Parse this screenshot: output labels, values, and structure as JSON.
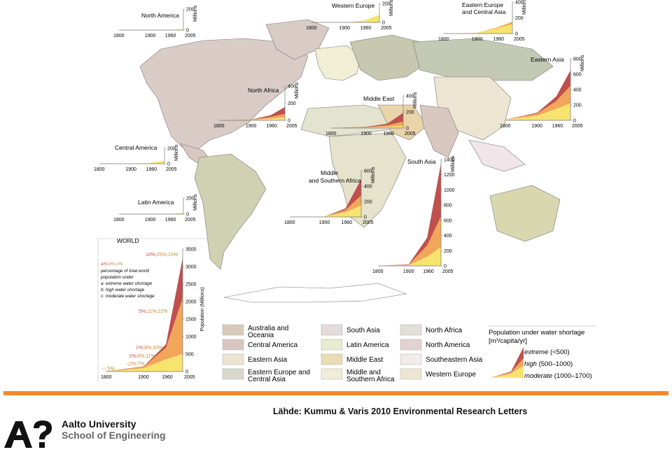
{
  "colors": {
    "extreme": "#c0504d",
    "high": "#f2a65a",
    "moderate": "#f7e46e",
    "accent": "#f4862b",
    "ocean": "#ffffff"
  },
  "chart_data": [
    {
      "type": "area",
      "title": "North America",
      "x": [
        1800,
        1900,
        1960,
        2005
      ],
      "series": [
        {
          "name": "moderate",
          "values": [
            0,
            0,
            0,
            10
          ]
        }
      ],
      "yticks": [
        0,
        200
      ],
      "ylabel": "Millions",
      "ylim": [
        0,
        200
      ]
    },
    {
      "type": "area",
      "title": "Western Europe",
      "x": [
        1800,
        1900,
        1960,
        2005
      ],
      "series": [
        {
          "name": "moderate",
          "values": [
            0,
            0,
            20,
            80
          ]
        }
      ],
      "yticks": [
        0,
        200
      ],
      "ylabel": "Millions",
      "ylim": [
        0,
        200
      ]
    },
    {
      "type": "area",
      "title": "Eastern Europe and Central Asia",
      "x": [
        1800,
        1900,
        1960,
        2005
      ],
      "series": [
        {
          "name": "moderate",
          "values": [
            0,
            10,
            70,
            120
          ]
        },
        {
          "name": "high",
          "values": [
            0,
            0,
            10,
            30
          ]
        }
      ],
      "yticks": [
        0,
        200,
        400
      ],
      "ylabel": "Millions",
      "ylim": [
        0,
        400
      ]
    },
    {
      "type": "area",
      "title": "Eastern Asia",
      "x": [
        1800,
        1900,
        1960,
        2005
      ],
      "series": [
        {
          "name": "moderate",
          "values": [
            10,
            60,
            150,
            220
          ]
        },
        {
          "name": "high",
          "values": [
            0,
            30,
            100,
            230
          ]
        },
        {
          "name": "extreme",
          "values": [
            0,
            10,
            60,
            200
          ]
        }
      ],
      "yticks": [
        0,
        200,
        400,
        600,
        800
      ],
      "ylabel": "Millions",
      "ylim": [
        0,
        800
      ]
    },
    {
      "type": "area",
      "title": "North Africa",
      "x": [
        1800,
        1900,
        1960,
        2005
      ],
      "series": [
        {
          "name": "moderate",
          "values": [
            0,
            5,
            20,
            35
          ]
        },
        {
          "name": "high",
          "values": [
            0,
            5,
            20,
            40
          ]
        },
        {
          "name": "extreme",
          "values": [
            0,
            0,
            20,
            80
          ]
        }
      ],
      "yticks": [
        0,
        200,
        400
      ],
      "ylabel": "Millions",
      "ylim": [
        0,
        400
      ]
    },
    {
      "type": "area",
      "title": "Middle East",
      "x": [
        1800,
        1900,
        1960,
        2005
      ],
      "series": [
        {
          "name": "moderate",
          "values": [
            0,
            5,
            15,
            30
          ]
        },
        {
          "name": "high",
          "values": [
            0,
            5,
            20,
            50
          ]
        },
        {
          "name": "extreme",
          "values": [
            0,
            5,
            20,
            110
          ]
        }
      ],
      "yticks": [
        0,
        200,
        400
      ],
      "ylabel": "Millions",
      "ylim": [
        0,
        400
      ]
    },
    {
      "type": "area",
      "title": "Central America",
      "x": [
        1800,
        1900,
        1960,
        2005
      ],
      "series": [
        {
          "name": "moderate",
          "values": [
            0,
            0,
            10,
            40
          ]
        }
      ],
      "yticks": [
        0,
        200
      ],
      "ylabel": "Millions",
      "ylim": [
        0,
        200
      ]
    },
    {
      "type": "area",
      "title": "Latin America",
      "x": [
        1800,
        1900,
        1960,
        2005
      ],
      "series": [
        {
          "name": "moderate",
          "values": [
            0,
            0,
            0,
            15
          ]
        }
      ],
      "yticks": [
        0,
        200
      ],
      "ylabel": "Millions",
      "ylim": [
        0,
        200
      ]
    },
    {
      "type": "area",
      "title": "Middle and Southern Africa",
      "x": [
        1800,
        1900,
        1960,
        2005
      ],
      "series": [
        {
          "name": "moderate",
          "values": [
            0,
            5,
            60,
            150
          ]
        },
        {
          "name": "high",
          "values": [
            0,
            0,
            30,
            130
          ]
        },
        {
          "name": "extreme",
          "values": [
            0,
            0,
            20,
            210
          ]
        }
      ],
      "yticks": [
        0,
        200,
        400,
        600
      ],
      "ylabel": "Millions",
      "ylim": [
        0,
        600
      ]
    },
    {
      "type": "area",
      "title": "South Asia",
      "x": [
        1800,
        1900,
        1960,
        2005
      ],
      "series": [
        {
          "name": "moderate",
          "values": [
            0,
            10,
            120,
            250
          ]
        },
        {
          "name": "high",
          "values": [
            0,
            5,
            150,
            400
          ]
        },
        {
          "name": "extreme",
          "values": [
            0,
            5,
            100,
            700
          ]
        }
      ],
      "yticks": [
        0,
        200,
        400,
        600,
        800,
        1000,
        1200,
        1400
      ],
      "ylabel": "Millions",
      "ylim": [
        0,
        1400
      ]
    },
    {
      "type": "area",
      "title": "WORLD",
      "x": [
        1800,
        1900,
        1960,
        2005
      ],
      "series": [
        {
          "name": "moderate",
          "values": [
            5,
            95,
            350,
            500
          ]
        },
        {
          "name": "high",
          "values": [
            3,
            40,
            330,
            1600
          ]
        },
        {
          "name": "extreme",
          "values": [
            2,
            10,
            100,
            1150
          ]
        }
      ],
      "yticks": [
        0,
        500,
        1000,
        1500,
        2000,
        2500,
        3000,
        3500
      ],
      "ylabel": "Population (Millions)",
      "ylim": [
        0,
        3500
      ],
      "annotations": [
        "-;-;5%",
        "1%;4%;11%",
        "-;2%;7%",
        "1%;8%;10%",
        "5%;11%;22%",
        "10%;25%;15%"
      ],
      "key_title": "a%;b%;c%",
      "key_lines": [
        "percentage of total world",
        "population under",
        "a: extreme water shortage",
        "b: high water shortage",
        "c: moderate water shortage"
      ]
    }
  ],
  "legend": {
    "regions": [
      "Australia and Oceania",
      "Central America",
      "Eastern Asia",
      "Eastern Europe and Central Asia",
      "South Asia",
      "Latin America",
      "Middle East",
      "Middle and Southern Africa",
      "North Africa",
      "North America",
      "Southeastern Asia",
      "Western Europe"
    ],
    "shortage_title": "Population under water shortage",
    "shortage_unit": "[m³/capita/yr]",
    "items": [
      {
        "name": "extreme",
        "range": "(<500)"
      },
      {
        "name": "high",
        "range": "(500–1000)"
      },
      {
        "name": "moderate",
        "range": "(1000–1700)"
      }
    ]
  },
  "footer": {
    "source": "Lähde: Kummu & Varis 2010 Environmental Research Letters",
    "university": "Aalto University",
    "school": "School of Engineering"
  }
}
